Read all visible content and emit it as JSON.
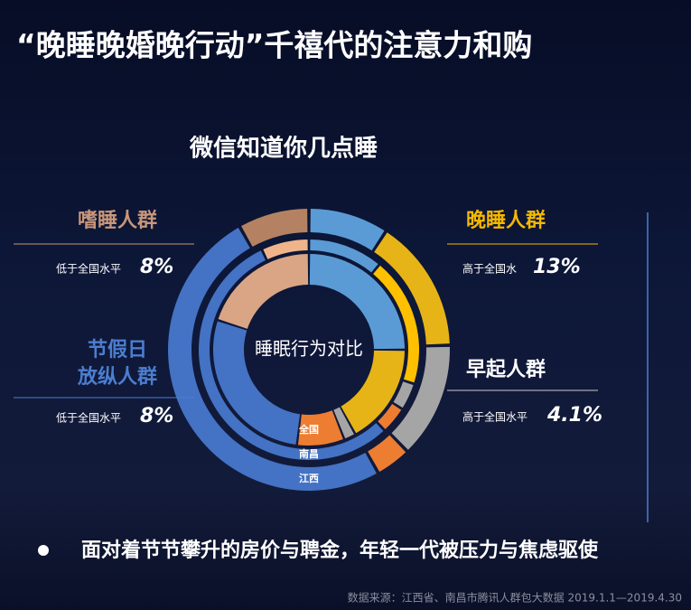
{
  "header": {
    "title": "“晚睡晚婚晚行动”千禧代的注意力和购"
  },
  "subtitle": "微信知道你几点睡",
  "center_label": "睡眠行为对比",
  "rings": [
    {
      "label": "全国",
      "values": [
        25,
        17,
        2,
        8,
        28,
        20
      ],
      "colors": [
        "#5b9bd5",
        "#e6b417",
        "#a5a5a5",
        "#ed7d31",
        "#4472c4",
        "#d9a585"
      ]
    },
    {
      "label": "南昌",
      "values": [
        11,
        19,
        4,
        4,
        55,
        7
      ],
      "colors": [
        "#5b9bd5",
        "#ffc000",
        "#a5a5a5",
        "#ed7d31",
        "#4472c4",
        "#f0b48a"
      ]
    },
    {
      "label": "江西",
      "values": [
        9,
        15,
        13,
        4,
        49,
        8
      ],
      "colors": [
        "#5b9bd5",
        "#e6b417",
        "#a5a5a5",
        "#ed7d31",
        "#4472c4",
        "#b48262"
      ]
    }
  ],
  "groups": [
    {
      "name": "嗜睡人群",
      "note": "低于全国水平",
      "figure": "8%"
    },
    {
      "name": "节假日\n放纵人群",
      "note": "低于全国水平",
      "figure": "8%"
    },
    {
      "name": "晚睡人群",
      "note": "高于全国水",
      "figure": "13%"
    },
    {
      "name": "早起人群",
      "note": "高于全国水平",
      "figure": "4.1%"
    }
  ],
  "bullet": "面对着节节攀升的房价与聘金，年轻一代被压力与焦虑驱使",
  "source": "数据来源：江西省、南昌市腾讯人群包大数据 2019.1.1—2019.4.30"
}
